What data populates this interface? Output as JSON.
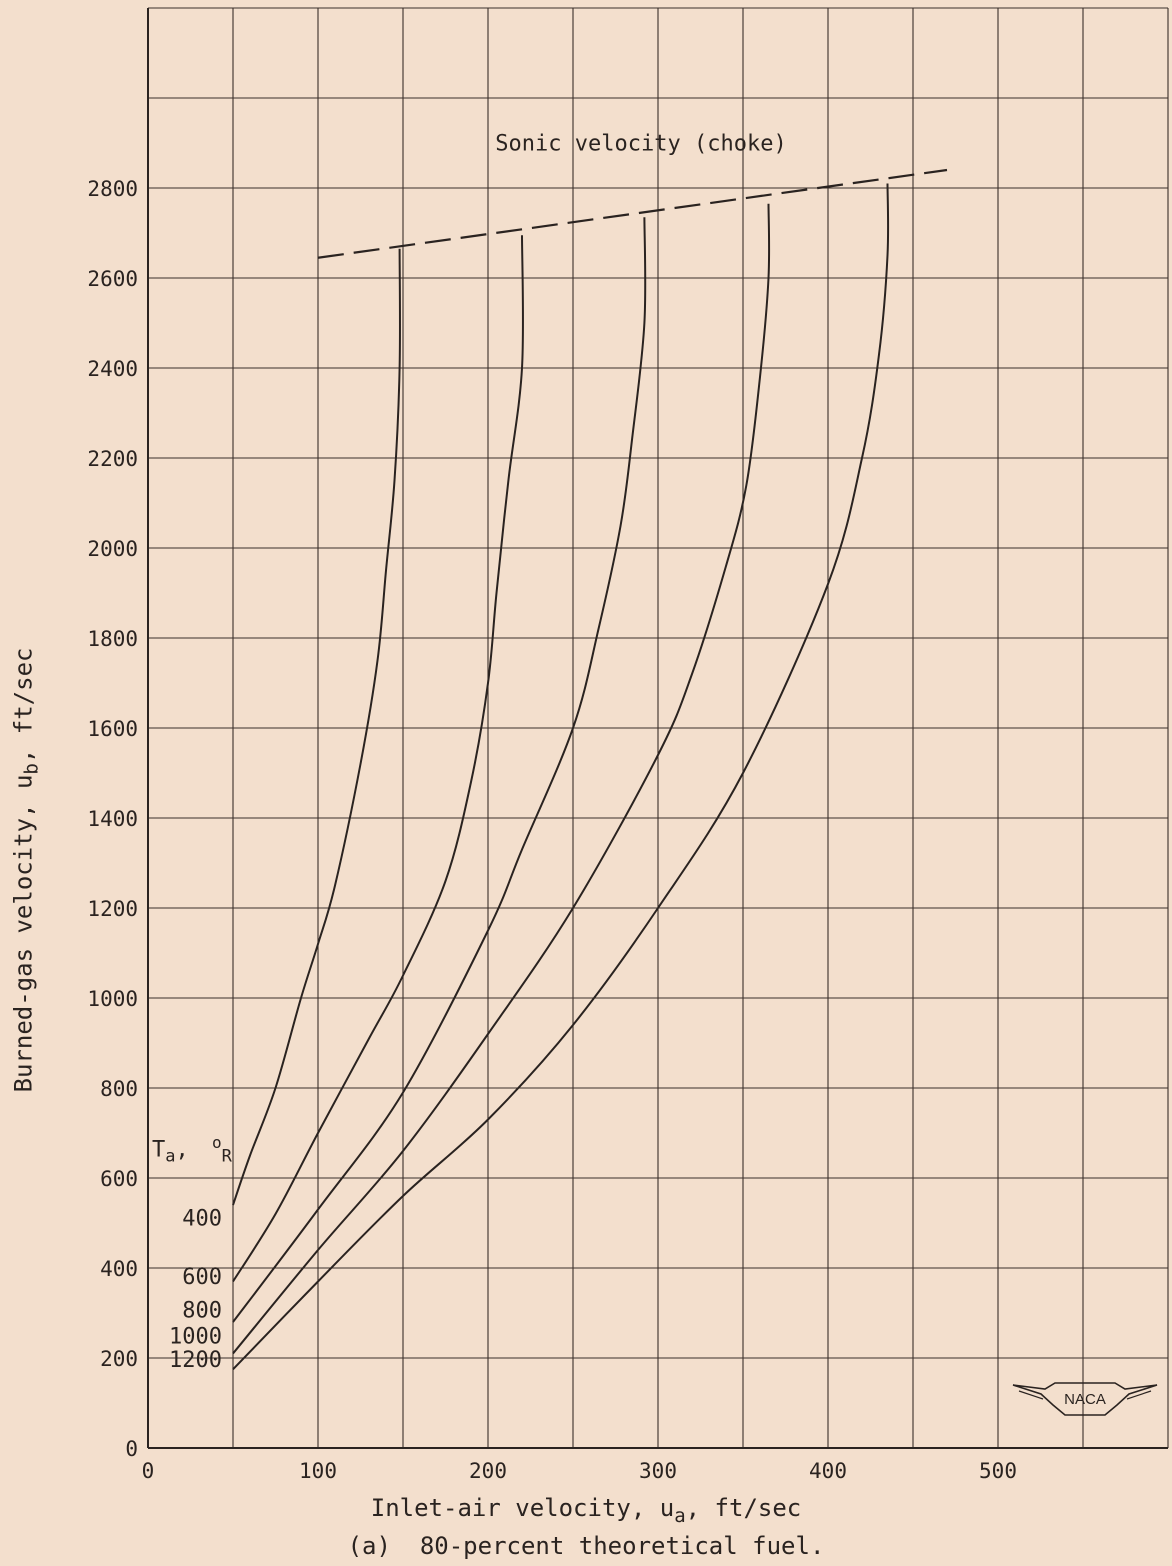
{
  "chart_data": {
    "type": "line",
    "xlabel": {
      "pre": "Inlet-air velocity, u",
      "sub": "a",
      "post": ", ft/sec"
    },
    "ylabel": {
      "pre": "Burned-gas velocity, u",
      "sub": "b",
      "post": ", ft/sec"
    },
    "caption": "(a)  80-percent theoretical fuel.",
    "xlim": [
      0,
      600
    ],
    "ylim": [
      0,
      3200
    ],
    "xticks": [
      "0",
      "100",
      "200",
      "300",
      "400",
      "500"
    ],
    "yticks": [
      "0",
      "200",
      "400",
      "600",
      "800",
      "1000",
      "1200",
      "1400",
      "1600",
      "1800",
      "2000",
      "2200",
      "2400",
      "2600",
      "2800"
    ],
    "grid": true,
    "legend_title": {
      "T": "T",
      "sub": "a",
      "sep": ",",
      "deg": "o",
      "unit": "R"
    },
    "curve_labels": [
      "400",
      "600",
      "800",
      "1000",
      "1200"
    ],
    "series": [
      {
        "name": "400",
        "x": [
          50,
          60,
          75,
          90,
          100,
          110,
          125,
          135,
          140,
          145,
          148,
          148
        ],
        "y": [
          540,
          650,
          800,
          1000,
          1120,
          1250,
          1520,
          1750,
          1950,
          2150,
          2400,
          2665
        ]
      },
      {
        "name": "600",
        "x": [
          50,
          75,
          100,
          130,
          150,
          175,
          190,
          200,
          205,
          212,
          220,
          220
        ],
        "y": [
          370,
          520,
          700,
          910,
          1050,
          1260,
          1480,
          1700,
          1900,
          2150,
          2400,
          2695
        ]
      },
      {
        "name": "800",
        "x": [
          50,
          100,
          150,
          200,
          220,
          250,
          265,
          278,
          285,
          292,
          292
        ],
        "y": [
          280,
          530,
          790,
          1150,
          1330,
          1600,
          1820,
          2050,
          2250,
          2500,
          2735
        ]
      },
      {
        "name": "1000",
        "x": [
          50,
          100,
          150,
          200,
          250,
          300,
          320,
          340,
          352,
          360,
          365,
          365
        ],
        "y": [
          210,
          440,
          660,
          920,
          1200,
          1540,
          1720,
          1960,
          2140,
          2380,
          2600,
          2765
        ]
      },
      {
        "name": "1200",
        "x": [
          50,
          100,
          150,
          200,
          250,
          300,
          350,
          400,
          420,
          430,
          435,
          435
        ],
        "y": [
          175,
          370,
          560,
          730,
          940,
          1200,
          1500,
          1920,
          2200,
          2430,
          2650,
          2810
        ]
      }
    ],
    "sonic_line": {
      "label": "Sonic velocity (choke)",
      "x": [
        100,
        470
      ],
      "y": [
        2645,
        2840
      ]
    },
    "logo": "NACA"
  }
}
